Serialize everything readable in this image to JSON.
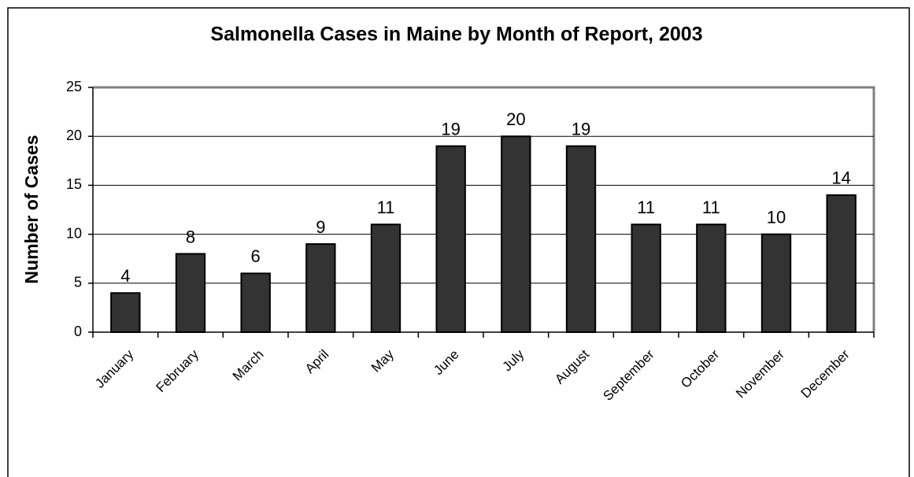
{
  "chart_data": {
    "type": "bar",
    "title": "Salmonella Cases in Maine by Month of Report, 2003",
    "y_label": "Number of Cases",
    "categories": [
      "January",
      "February",
      "March",
      "April",
      "May",
      "June",
      "July",
      "August",
      "September",
      "October",
      "November",
      "December"
    ],
    "values": [
      4,
      8,
      6,
      9,
      11,
      19,
      20,
      19,
      11,
      11,
      10,
      14
    ],
    "color": "#333333",
    "ylim": [
      0,
      25
    ],
    "yticks": [
      0,
      5,
      10,
      15,
      20,
      25
    ],
    "grid": true
  }
}
